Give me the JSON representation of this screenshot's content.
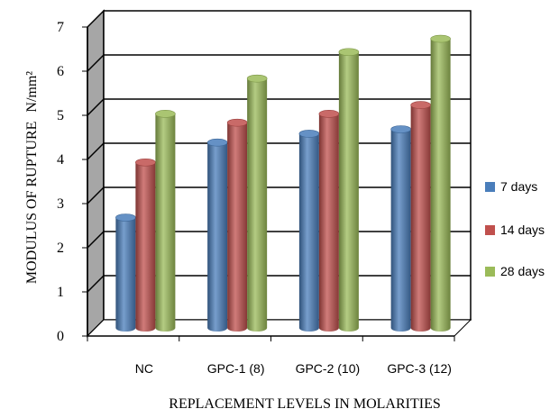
{
  "colors": {
    "series_7": "#4a7ebb",
    "series_14": "#c0504d",
    "series_28": "#9bbb59",
    "side_wall": "#a6a6a6",
    "floor": "#ffffff",
    "grid": "#000000"
  },
  "chart_data": {
    "type": "bar",
    "style": "3d-cylinder",
    "title": "",
    "xlabel": "REPLACEMENT LEVELS IN MOLARITIES",
    "ylabel": "MODULUS OF RUPTURE",
    "ylabel_unit": "N/mm²",
    "ylim": [
      0,
      7
    ],
    "yticks": [
      "0",
      "1",
      "2",
      "3",
      "4",
      "5",
      "6",
      "7"
    ],
    "grid": true,
    "legend_position": "right",
    "categories": [
      "NC",
      "GPC-1 (8)",
      "GPC-2 (10)",
      "GPC-3 (12)"
    ],
    "series": [
      {
        "name": "7 days",
        "values": [
          2.5,
          4.2,
          4.4,
          4.5
        ]
      },
      {
        "name": "14 days",
        "values": [
          3.75,
          4.65,
          4.85,
          5.05
        ]
      },
      {
        "name": "28 days",
        "values": [
          4.85,
          5.65,
          6.25,
          6.55
        ]
      }
    ]
  }
}
